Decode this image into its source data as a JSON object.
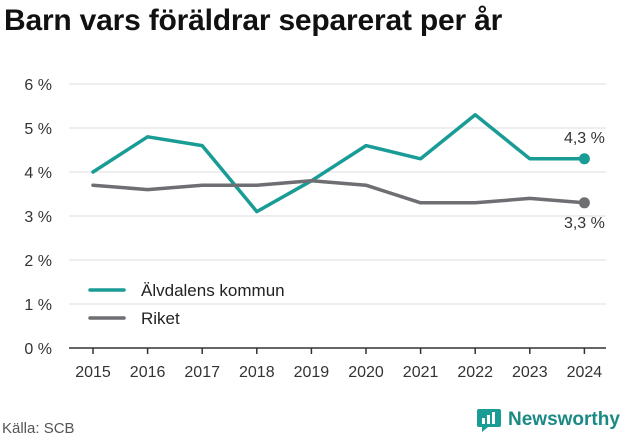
{
  "title": "Barn vars föräldrar separerat per år",
  "source": "Källa: SCB",
  "brand": {
    "name": "Newsworthy",
    "icon": "newsworthy-logo-icon"
  },
  "colors": {
    "alvdalen": "#1a9c96",
    "riket": "#6e6e73",
    "grid": "#dddddd",
    "axis": "#333333"
  },
  "chart_data": {
    "type": "line",
    "title": "Barn vars föräldrar separerat per år",
    "xlabel": "",
    "ylabel": "",
    "x": [
      "2015",
      "2016",
      "2017",
      "2018",
      "2019",
      "2020",
      "2021",
      "2022",
      "2023",
      "2024"
    ],
    "ylim": [
      0,
      6
    ],
    "yticks": [
      0,
      1,
      2,
      3,
      4,
      5,
      6
    ],
    "ytick_labels": [
      "0 %",
      "1 %",
      "2 %",
      "3 %",
      "4 %",
      "5 %",
      "6 %"
    ],
    "grid": true,
    "legend": "bottom-left",
    "series": [
      {
        "name": "Älvdalens kommun",
        "color": "#1a9c96",
        "values": [
          4.0,
          4.8,
          4.6,
          3.1,
          3.8,
          4.6,
          4.3,
          5.3,
          4.3,
          4.3
        ],
        "end_label": "4,3 %"
      },
      {
        "name": "Riket",
        "color": "#6e6e73",
        "values": [
          3.7,
          3.6,
          3.7,
          3.7,
          3.8,
          3.7,
          3.3,
          3.3,
          3.4,
          3.3
        ],
        "end_label": "3,3 %"
      }
    ]
  }
}
